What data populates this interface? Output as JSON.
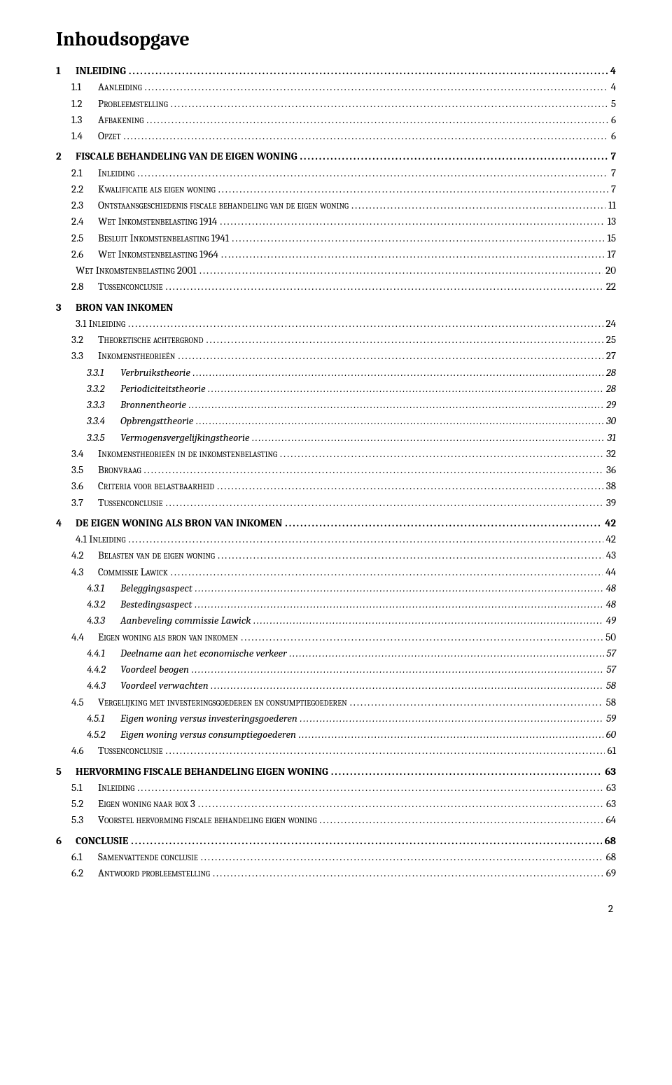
{
  "title": "Inhoudsopgave",
  "page_number": "2",
  "style": {
    "background_color": "#ffffff",
    "text_color": "#000000",
    "title_fontsize": 28,
    "body_fontsize": 15,
    "font_family": "Cambria"
  },
  "entries": [
    {
      "level": 1,
      "num": "1",
      "label": "INLEIDING",
      "page": "4"
    },
    {
      "level": 2,
      "num": "1.1",
      "label": "Aanleiding",
      "smallcaps": true,
      "page": "4"
    },
    {
      "level": 2,
      "num": "1.2",
      "label": "Probleemstelling",
      "smallcaps": true,
      "page": "5"
    },
    {
      "level": 2,
      "num": "1.3",
      "label": "Afbakening",
      "smallcaps": true,
      "page": "6"
    },
    {
      "level": 2,
      "num": "1.4",
      "label": "Opzet",
      "smallcaps": true,
      "page": "6"
    },
    {
      "level": 1,
      "num": "2",
      "label": "FISCALE BEHANDELING VAN DE EIGEN WONING",
      "page": "7"
    },
    {
      "level": 2,
      "num": "2.1",
      "label": "Inleiding",
      "smallcaps": true,
      "page": "7"
    },
    {
      "level": 2,
      "num": "2.2",
      "label": "Kwalificatie als eigen woning",
      "smallcaps": true,
      "page": "7"
    },
    {
      "level": 2,
      "num": "2.3",
      "label": "Ontstaansgeschiedenis fiscale behandeling van de eigen woning",
      "smallcaps": true,
      "page": "11"
    },
    {
      "level": 2,
      "num": "2.4",
      "label": "Wet Inkomstenbelasting 1914",
      "smallcaps": true,
      "page": "13"
    },
    {
      "level": 2,
      "num": "2.5",
      "label": "Besluit Inkomstenbelasting 1941",
      "smallcaps": true,
      "page": "15"
    },
    {
      "level": 2,
      "num": "2.6",
      "label": "Wet Inkomstenbelasting 1964",
      "smallcaps": true,
      "page": "17"
    },
    {
      "level": 2,
      "num": "",
      "label": "Wet Inkomstenbelasting 2001",
      "smallcaps": true,
      "page": "20",
      "noindent": true
    },
    {
      "level": 2,
      "num": "2.8",
      "label": "Tussenconclusie",
      "smallcaps": true,
      "page": "22"
    },
    {
      "level": 1,
      "num": "3",
      "label": "BRON VAN INKOMEN",
      "page": ""
    },
    {
      "level": 2,
      "num": "",
      "label": "3.1 Inleiding",
      "smallcaps": true,
      "page": "24",
      "noindent": true
    },
    {
      "level": 2,
      "num": "3.2",
      "label": "Theoretische achtergrond",
      "smallcaps": true,
      "page": "25"
    },
    {
      "level": 2,
      "num": "3.3",
      "label": "Inkomenstheorieën",
      "smallcaps": true,
      "page": "27"
    },
    {
      "level": 3,
      "num": "3.3.1",
      "label": "Verbruikstheorie",
      "page": "28"
    },
    {
      "level": 3,
      "num": "3.3.2",
      "label": "Periodiciteitstheorie",
      "page": "28"
    },
    {
      "level": 3,
      "num": "3.3.3",
      "label": "Bronnentheorie",
      "page": "29"
    },
    {
      "level": 3,
      "num": "3.3.4",
      "label": "Opbrengsttheorie",
      "page": "30"
    },
    {
      "level": 3,
      "num": "3.3.5",
      "label": "Vermogensvergelijkingstheorie",
      "page": "31"
    },
    {
      "level": 2,
      "num": "3.4",
      "label": "Inkomenstheorieën in de inkomstenbelasting",
      "smallcaps": true,
      "page": "32"
    },
    {
      "level": 2,
      "num": "3.5",
      "label": "Bronvraag",
      "smallcaps": true,
      "page": "36"
    },
    {
      "level": 2,
      "num": "3.6",
      "label": "Criteria voor belastbaarheid",
      "smallcaps": true,
      "page": "38"
    },
    {
      "level": 2,
      "num": "3.7",
      "label": "Tussenconclusie",
      "smallcaps": true,
      "page": "39"
    },
    {
      "level": 1,
      "num": "4",
      "label": "DE EIGEN WONING ALS BRON VAN INKOMEN",
      "page": "42"
    },
    {
      "level": 2,
      "num": "",
      "label": "4.1 Inleiding",
      "smallcaps": true,
      "page": "42",
      "noindent": true
    },
    {
      "level": 2,
      "num": "4.2",
      "label": "Belasten van de eigen woning",
      "smallcaps": true,
      "page": "43"
    },
    {
      "level": 2,
      "num": "4.3",
      "label": "Commissie Lawick",
      "smallcaps": true,
      "page": "44"
    },
    {
      "level": 3,
      "num": "4.3.1",
      "label": "Beleggingsaspect",
      "page": "48"
    },
    {
      "level": 3,
      "num": "4.3.2",
      "label": "Bestedingsaspect",
      "page": "48"
    },
    {
      "level": 3,
      "num": "4.3.3",
      "label": "Aanbeveling commissie Lawick",
      "page": "49"
    },
    {
      "level": 2,
      "num": "4.4",
      "label": "Eigen woning als bron van inkomen",
      "smallcaps": true,
      "page": "50"
    },
    {
      "level": 3,
      "num": "4.4.1",
      "label": "Deelname aan het economische verkeer",
      "page": "57"
    },
    {
      "level": 3,
      "num": "4.4.2",
      "label": "Voordeel beogen",
      "page": "57"
    },
    {
      "level": 3,
      "num": "4.4.3",
      "label": "Voordeel verwachten",
      "page": "58"
    },
    {
      "level": 2,
      "num": "4.5",
      "label": "Vergelijking met investeringsgoederen en consumptiegoederen",
      "smallcaps": true,
      "page": "58"
    },
    {
      "level": 3,
      "num": "4.5.1",
      "label": "Eigen woning versus investeringsgoederen",
      "page": "59"
    },
    {
      "level": 3,
      "num": "4.5.2",
      "label": "Eigen woning versus consumptiegoederen",
      "page": "60"
    },
    {
      "level": 2,
      "num": "4.6",
      "label": "Tussenconclusie",
      "smallcaps": true,
      "page": "61"
    },
    {
      "level": 1,
      "num": "5",
      "label": "HERVORMING FISCALE BEHANDELING EIGEN WONING",
      "page": "63"
    },
    {
      "level": 2,
      "num": "5.1",
      "label": "Inleiding",
      "smallcaps": true,
      "page": "63"
    },
    {
      "level": 2,
      "num": "5.2",
      "label": "Eigen woning naar box 3",
      "smallcaps": true,
      "page": "63"
    },
    {
      "level": 2,
      "num": "5.3",
      "label": "Voorstel hervorming fiscale behandeling eigen woning",
      "smallcaps": true,
      "page": "64"
    },
    {
      "level": 1,
      "num": "6",
      "label": "CONCLUSIE",
      "page": "68"
    },
    {
      "level": 2,
      "num": "6.1",
      "label": "Samenvattende conclusie",
      "smallcaps": true,
      "page": "68"
    },
    {
      "level": 2,
      "num": "6.2",
      "label": "Antwoord probleemstelling",
      "smallcaps": true,
      "page": "69"
    }
  ]
}
